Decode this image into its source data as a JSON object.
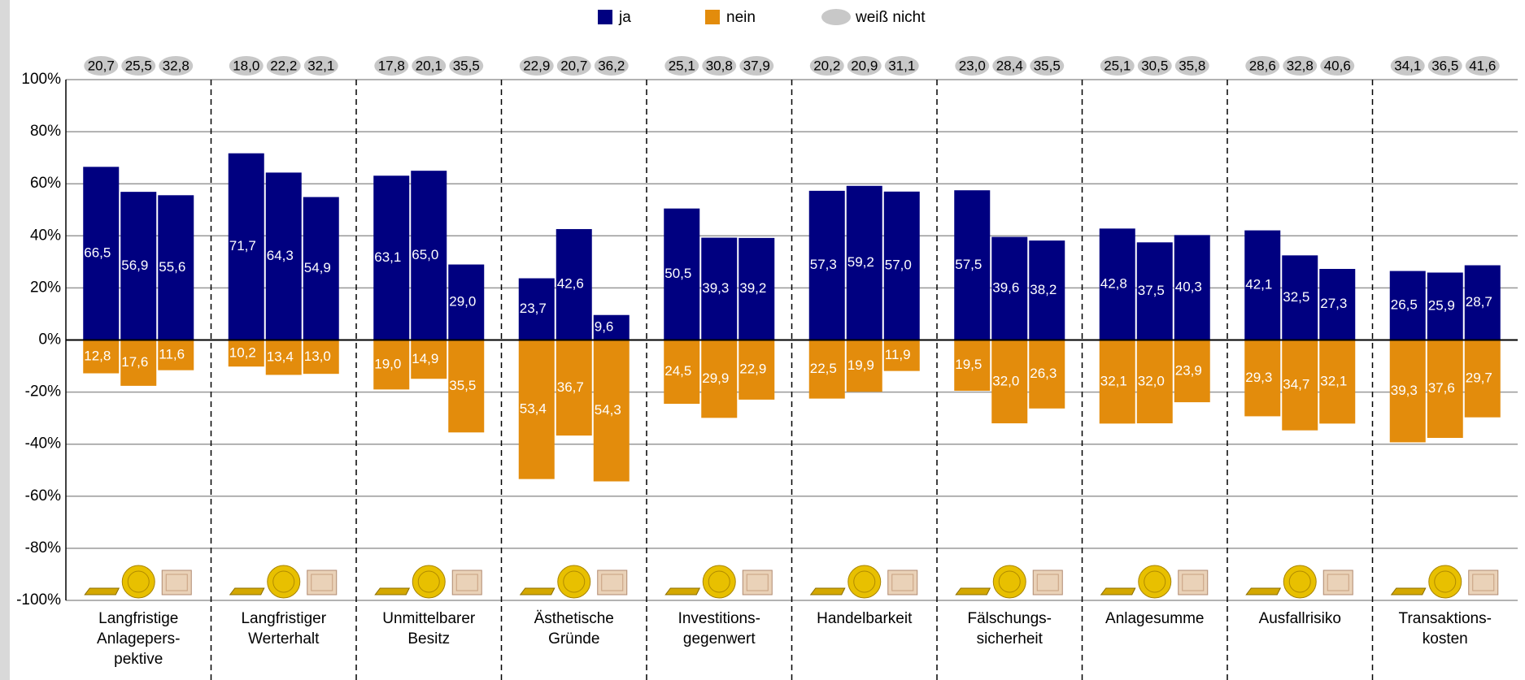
{
  "chart_data": {
    "type": "bar",
    "categories": [
      [
        "Langfristige",
        "Anlagepers-",
        "pektive"
      ],
      [
        "Langfristiger",
        "Werterhalt"
      ],
      [
        "Unmittelbarer",
        "Besitz"
      ],
      [
        "Ästhetische",
        "Gründe"
      ],
      [
        "Investitions-",
        "gegenwert"
      ],
      [
        "Handelbarkeit"
      ],
      [
        "Fälschungs-",
        "sicherheit"
      ],
      [
        "Anlagesumme"
      ],
      [
        "Ausfallrisiko"
      ],
      [
        "Transaktions-",
        "kosten"
      ]
    ],
    "series": [
      {
        "name": "ja",
        "color": "#000080",
        "values": [
          [
            66.5,
            56.9,
            55.6
          ],
          [
            71.7,
            64.3,
            54.9
          ],
          [
            63.1,
            65.0,
            29.0
          ],
          [
            23.7,
            42.6,
            9.6
          ],
          [
            50.5,
            39.3,
            39.2
          ],
          [
            57.3,
            59.2,
            57.0
          ],
          [
            57.5,
            39.6,
            38.2
          ],
          [
            42.8,
            37.5,
            40.3
          ],
          [
            42.1,
            32.5,
            27.3
          ],
          [
            26.5,
            25.9,
            28.7
          ]
        ],
        "value_labels": [
          [
            "66,5",
            "56,9",
            "55,6"
          ],
          [
            "71,7",
            "64,3",
            "54,9"
          ],
          [
            "63,1",
            "65,0",
            "29,0"
          ],
          [
            "23,7",
            "42,6",
            "9,6"
          ],
          [
            "50,5",
            "39,3",
            "39,2"
          ],
          [
            "57,3",
            "59,2",
            "57,0"
          ],
          [
            "57,5",
            "39,6",
            "38,2"
          ],
          [
            "42,8",
            "37,5",
            "40,3"
          ],
          [
            "42,1",
            "32,5",
            "27,3"
          ],
          [
            "26,5",
            "25,9",
            "28,7"
          ]
        ]
      },
      {
        "name": "nein",
        "color": "#e38c0c",
        "values": [
          [
            -12.8,
            -17.6,
            -11.6
          ],
          [
            -10.2,
            -13.4,
            -13.0
          ],
          [
            -19.0,
            -14.9,
            -35.5
          ],
          [
            -53.4,
            -36.7,
            -54.3
          ],
          [
            -24.5,
            -29.9,
            -22.9
          ],
          [
            -22.5,
            -19.9,
            -11.9
          ],
          [
            -19.5,
            -32.0,
            -26.3
          ],
          [
            -32.1,
            -32.0,
            -23.9
          ],
          [
            -29.3,
            -34.7,
            -32.1
          ],
          [
            -39.3,
            -37.6,
            -29.7
          ]
        ],
        "value_labels": [
          [
            "12,8",
            "17,6",
            "11,6"
          ],
          [
            "10,2",
            "13,4",
            "13,0"
          ],
          [
            "19,0",
            "14,9",
            "35,5"
          ],
          [
            "53,4",
            "36,7",
            "54,3"
          ],
          [
            "24,5",
            "29,9",
            "22,9"
          ],
          [
            "22,5",
            "19,9",
            "11,9"
          ],
          [
            "19,5",
            "32,0",
            "26,3"
          ],
          [
            "32,1",
            "32,0",
            "23,9"
          ],
          [
            "29,3",
            "34,7",
            "32,1"
          ],
          [
            "39,3",
            "37,6",
            "29,7"
          ]
        ]
      },
      {
        "name": "weiß nicht",
        "color": "#c8c8c8",
        "values": [
          [
            20.7,
            25.5,
            32.8
          ],
          [
            18.0,
            22.2,
            32.1
          ],
          [
            17.8,
            20.1,
            35.5
          ],
          [
            22.9,
            20.7,
            36.2
          ],
          [
            25.1,
            30.8,
            37.9
          ],
          [
            20.2,
            20.9,
            31.1
          ],
          [
            23.0,
            28.4,
            35.5
          ],
          [
            25.1,
            30.5,
            35.8
          ],
          [
            28.6,
            32.8,
            40.6
          ],
          [
            34.1,
            36.5,
            41.6
          ]
        ],
        "value_labels": [
          [
            "20,7",
            "25,5",
            "32,8"
          ],
          [
            "18,0",
            "22,2",
            "32,1"
          ],
          [
            "17,8",
            "20,1",
            "35,5"
          ],
          [
            "22,9",
            "20,7",
            "36,2"
          ],
          [
            "25,1",
            "30,8",
            "37,9"
          ],
          [
            "20,2",
            "20,9",
            "31,1"
          ],
          [
            "23,0",
            "28,4",
            "35,5"
          ],
          [
            "25,1",
            "30,5",
            "35,8"
          ],
          [
            "28,6",
            "32,8",
            "40,6"
          ],
          [
            "34,1",
            "36,5",
            "41,6"
          ]
        ]
      }
    ],
    "ylim": [
      -100,
      100
    ],
    "yticks": [
      {
        "value": -100,
        "label": "-100%"
      },
      {
        "value": -80,
        "label": "-80%"
      },
      {
        "value": -60,
        "label": "-60%"
      },
      {
        "value": -40,
        "label": "-40%"
      },
      {
        "value": -20,
        "label": "-20%"
      },
      {
        "value": 0,
        "label": "0%"
      },
      {
        "value": 20,
        "label": "20%"
      },
      {
        "value": 40,
        "label": "40%"
      },
      {
        "value": 60,
        "label": "60%"
      },
      {
        "value": 80,
        "label": "80%"
      },
      {
        "value": 100,
        "label": "100%"
      }
    ],
    "grid": true
  }
}
